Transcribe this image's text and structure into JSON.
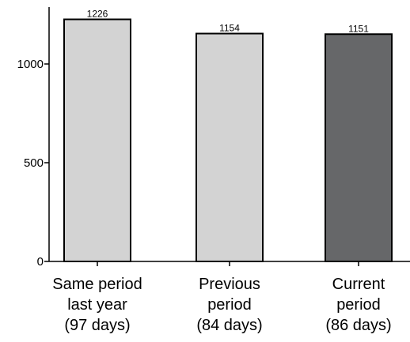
{
  "chart_data": {
    "type": "bar",
    "categories": [
      [
        "Same period",
        "last year",
        "(97 days)"
      ],
      [
        "Previous",
        "period",
        "(84 days)"
      ],
      [
        "Current",
        "period",
        "(86 days)"
      ]
    ],
    "values": [
      1226,
      1154,
      1151
    ],
    "data_labels": [
      "1226",
      "1154",
      "1151"
    ],
    "bar_colors": [
      "#d3d3d3",
      "#d3d3d3",
      "#666769"
    ],
    "bar_edge_color": "#000000",
    "yticks": [
      0,
      500,
      1000
    ],
    "ytick_labels": [
      "0",
      "500",
      "1000"
    ],
    "ylim": [
      0,
      1300
    ],
    "grid": false,
    "title": "",
    "xlabel": "",
    "ylabel": ""
  }
}
